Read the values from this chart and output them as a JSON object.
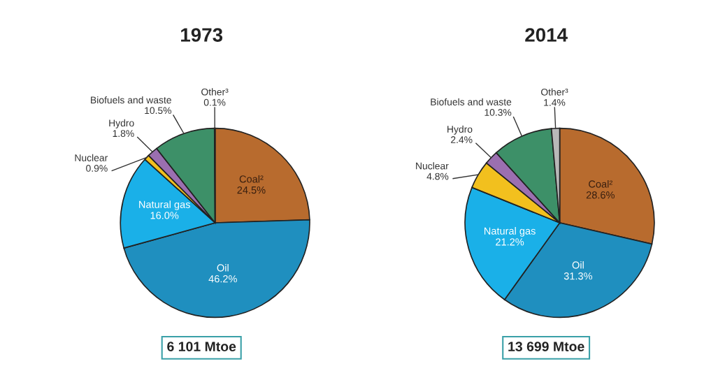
{
  "chart_data": [
    {
      "type": "pie",
      "title": "1973",
      "categories": [
        "Coal²",
        "Oil",
        "Natural gas",
        "Nuclear",
        "Hydro",
        "Biofuels and waste",
        "Other³"
      ],
      "values": [
        24.5,
        46.2,
        16.0,
        0.9,
        1.8,
        10.5,
        0.1
      ],
      "value_labels": [
        "24.5%",
        "46.2%",
        "16.0%",
        "0.9%",
        "1.8%",
        "10.5%",
        "0.1%"
      ],
      "colors": [
        "#b86b2e",
        "#1f8fbf",
        "#1ab0e8",
        "#f2c01e",
        "#9b6fb0",
        "#3d9068",
        "#b8b8b8"
      ],
      "annotations": [
        "6 101 Mtoe"
      ]
    },
    {
      "type": "pie",
      "title": "2014",
      "categories": [
        "Coal²",
        "Oil",
        "Natural gas",
        "Nuclear",
        "Hydro",
        "Biofuels and waste",
        "Other³"
      ],
      "values": [
        28.6,
        31.3,
        21.2,
        4.8,
        2.4,
        10.3,
        1.4
      ],
      "value_labels": [
        "28.6%",
        "31.3%",
        "21.2%",
        "4.8%",
        "2.4%",
        "10.3%",
        "1.4%"
      ],
      "colors": [
        "#b86b2e",
        "#1f8fbf",
        "#1ab0e8",
        "#f2c01e",
        "#9b6fb0",
        "#3d9068",
        "#b8b8b8"
      ],
      "annotations": [
        "13 699 Mtoe"
      ]
    }
  ]
}
